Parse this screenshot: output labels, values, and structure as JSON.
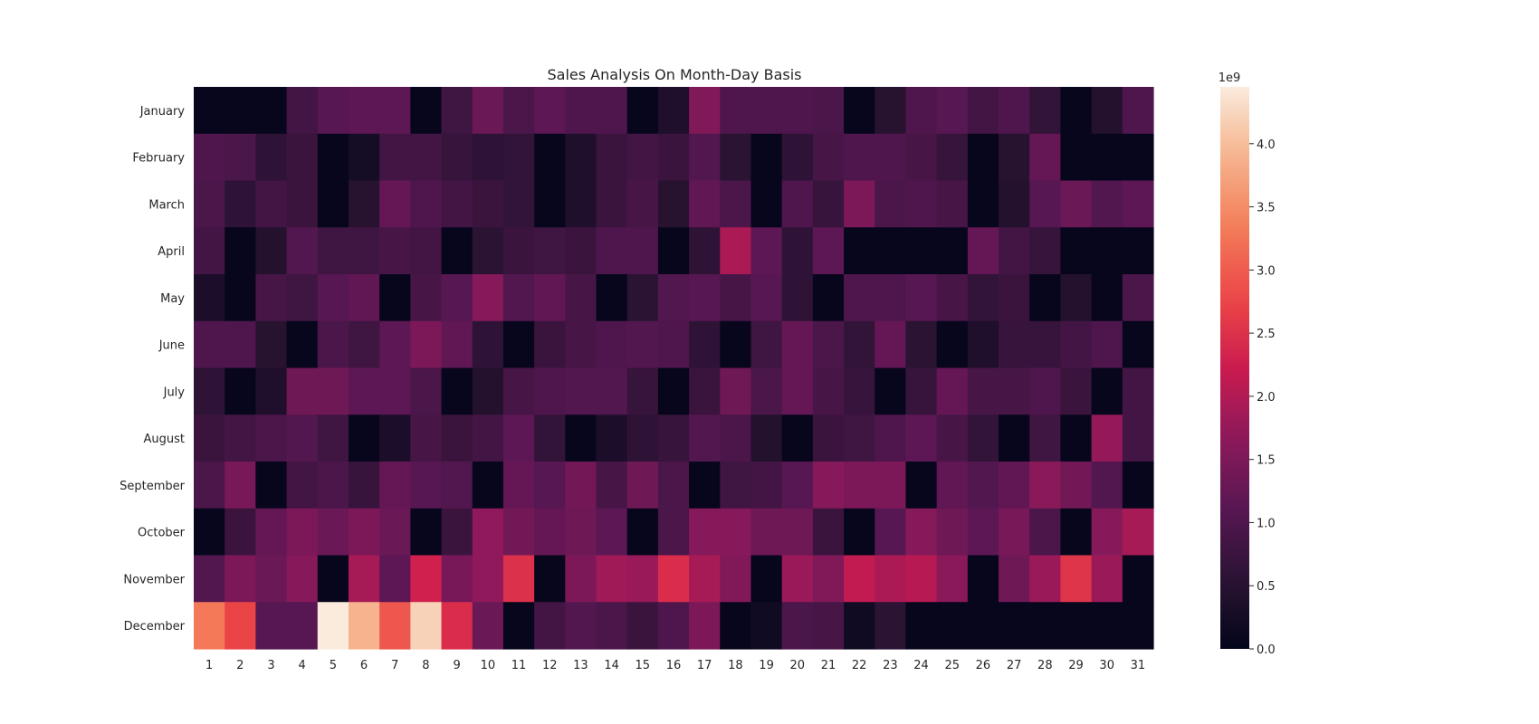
{
  "chart_data": {
    "type": "heatmap",
    "title": "Sales Analysis On Month-Day Basis",
    "xlabel": "",
    "ylabel": "",
    "rows": [
      "January",
      "February",
      "March",
      "April",
      "May",
      "June",
      "July",
      "August",
      "September",
      "October",
      "November",
      "December"
    ],
    "columns": [
      "1",
      "2",
      "3",
      "4",
      "5",
      "6",
      "7",
      "8",
      "9",
      "10",
      "11",
      "12",
      "13",
      "14",
      "15",
      "16",
      "17",
      "18",
      "19",
      "20",
      "21",
      "22",
      "23",
      "24",
      "25",
      "26",
      "27",
      "28",
      "29",
      "30",
      "31"
    ],
    "values": [
      [
        0.05,
        0.05,
        0.05,
        0.85,
        1.1,
        1.15,
        1.15,
        0.05,
        0.8,
        1.3,
        0.95,
        1.15,
        1.0,
        1.0,
        0.05,
        0.4,
        1.55,
        1.0,
        1.0,
        1.0,
        0.95,
        0.05,
        0.5,
        1.0,
        1.1,
        0.85,
        1.0,
        0.65,
        0.05,
        0.45,
        1.0
      ],
      [
        1.0,
        0.95,
        0.6,
        0.75,
        0.05,
        0.25,
        0.85,
        0.85,
        0.7,
        0.6,
        0.65,
        0.05,
        0.4,
        0.75,
        0.85,
        0.75,
        1.05,
        0.55,
        0.05,
        0.6,
        0.9,
        1.0,
        1.0,
        0.9,
        0.7,
        0.05,
        0.5,
        1.25,
        0.05,
        0.05,
        0.05
      ],
      [
        0.95,
        0.6,
        0.85,
        0.75,
        0.05,
        0.5,
        1.25,
        1.0,
        0.85,
        0.75,
        0.65,
        0.05,
        0.4,
        0.75,
        0.9,
        0.5,
        1.2,
        0.95,
        0.05,
        1.0,
        0.7,
        1.5,
        0.95,
        1.0,
        0.9,
        0.05,
        0.45,
        1.1,
        1.3,
        1.05,
        1.15
      ],
      [
        0.85,
        0.05,
        0.45,
        1.05,
        0.8,
        0.8,
        0.9,
        0.85,
        0.05,
        0.55,
        0.75,
        0.8,
        0.75,
        1.0,
        1.0,
        0.05,
        0.6,
        1.95,
        1.15,
        0.6,
        1.15,
        0.05,
        0.05,
        0.05,
        0.05,
        1.25,
        0.85,
        0.7,
        0.05,
        0.05,
        0.05
      ],
      [
        0.35,
        0.05,
        0.9,
        0.8,
        1.1,
        1.2,
        0.05,
        0.9,
        1.1,
        1.6,
        1.05,
        1.2,
        0.9,
        0.05,
        0.55,
        1.05,
        1.1,
        0.9,
        1.1,
        0.6,
        0.05,
        1.0,
        1.0,
        1.1,
        0.9,
        0.65,
        0.75,
        0.05,
        0.45,
        0.05,
        0.95
      ],
      [
        1.0,
        1.0,
        0.5,
        0.05,
        0.95,
        0.8,
        1.15,
        1.5,
        1.2,
        0.6,
        0.05,
        0.75,
        0.9,
        1.0,
        1.05,
        1.0,
        0.6,
        0.05,
        0.8,
        1.25,
        0.95,
        0.65,
        1.25,
        0.55,
        0.05,
        0.4,
        0.7,
        0.7,
        0.85,
        1.0,
        0.05
      ],
      [
        0.6,
        0.05,
        0.4,
        1.35,
        1.35,
        1.15,
        1.15,
        0.95,
        0.05,
        0.45,
        0.9,
        1.0,
        1.05,
        1.05,
        0.7,
        0.05,
        0.75,
        1.35,
        0.95,
        1.25,
        0.9,
        0.7,
        0.05,
        0.7,
        1.25,
        0.9,
        0.9,
        1.0,
        0.75,
        0.05,
        0.85
      ],
      [
        0.75,
        0.85,
        0.95,
        1.05,
        0.8,
        0.05,
        0.35,
        0.9,
        0.75,
        0.85,
        1.15,
        0.65,
        0.05,
        0.35,
        0.6,
        0.7,
        1.05,
        0.95,
        0.45,
        0.05,
        0.75,
        0.8,
        1.0,
        1.15,
        0.9,
        0.65,
        0.05,
        0.8,
        0.05,
        1.75,
        0.85
      ],
      [
        0.95,
        1.45,
        0.05,
        0.85,
        0.95,
        0.7,
        1.25,
        1.1,
        1.05,
        0.05,
        1.25,
        1.1,
        1.4,
        0.9,
        1.35,
        0.95,
        0.05,
        0.8,
        0.85,
        1.1,
        1.6,
        1.5,
        1.5,
        0.05,
        1.2,
        1.05,
        1.2,
        1.65,
        1.4,
        1.05,
        0.05
      ],
      [
        0.05,
        0.75,
        1.25,
        1.5,
        1.3,
        1.5,
        1.3,
        0.05,
        0.75,
        1.7,
        1.4,
        1.25,
        1.35,
        1.15,
        0.05,
        0.95,
        1.6,
        1.6,
        1.35,
        1.35,
        0.75,
        0.05,
        1.1,
        1.6,
        1.35,
        1.15,
        1.45,
        0.95,
        0.05,
        1.6,
        1.9
      ],
      [
        1.05,
        1.5,
        1.3,
        1.6,
        0.05,
        1.9,
        1.15,
        2.3,
        1.45,
        1.7,
        2.5,
        0.05,
        1.5,
        1.85,
        1.8,
        2.45,
        1.9,
        1.55,
        0.05,
        1.8,
        1.55,
        2.15,
        1.95,
        2.05,
        1.65,
        0.05,
        1.35,
        1.8,
        2.55,
        1.8,
        0.05
      ],
      [
        3.3,
        2.75,
        1.1,
        1.1,
        4.45,
        3.9,
        2.95,
        4.2,
        2.45,
        1.3,
        0.05,
        0.85,
        1.05,
        0.95,
        0.75,
        1.0,
        1.5,
        0.05,
        0.2,
        0.95,
        0.9,
        0.2,
        0.55,
        0.05,
        0.05,
        0.05,
        0.05,
        0.05,
        0.05,
        0.05,
        0.05
      ]
    ],
    "colorbar": {
      "min": 0.0,
      "max": 4.45,
      "ticks": [
        "0.0",
        "0.5",
        "1.0",
        "1.5",
        "2.0",
        "2.5",
        "3.0",
        "3.5",
        "4.0"
      ],
      "exponent_label": "1e9",
      "colormap": "rocket"
    }
  }
}
